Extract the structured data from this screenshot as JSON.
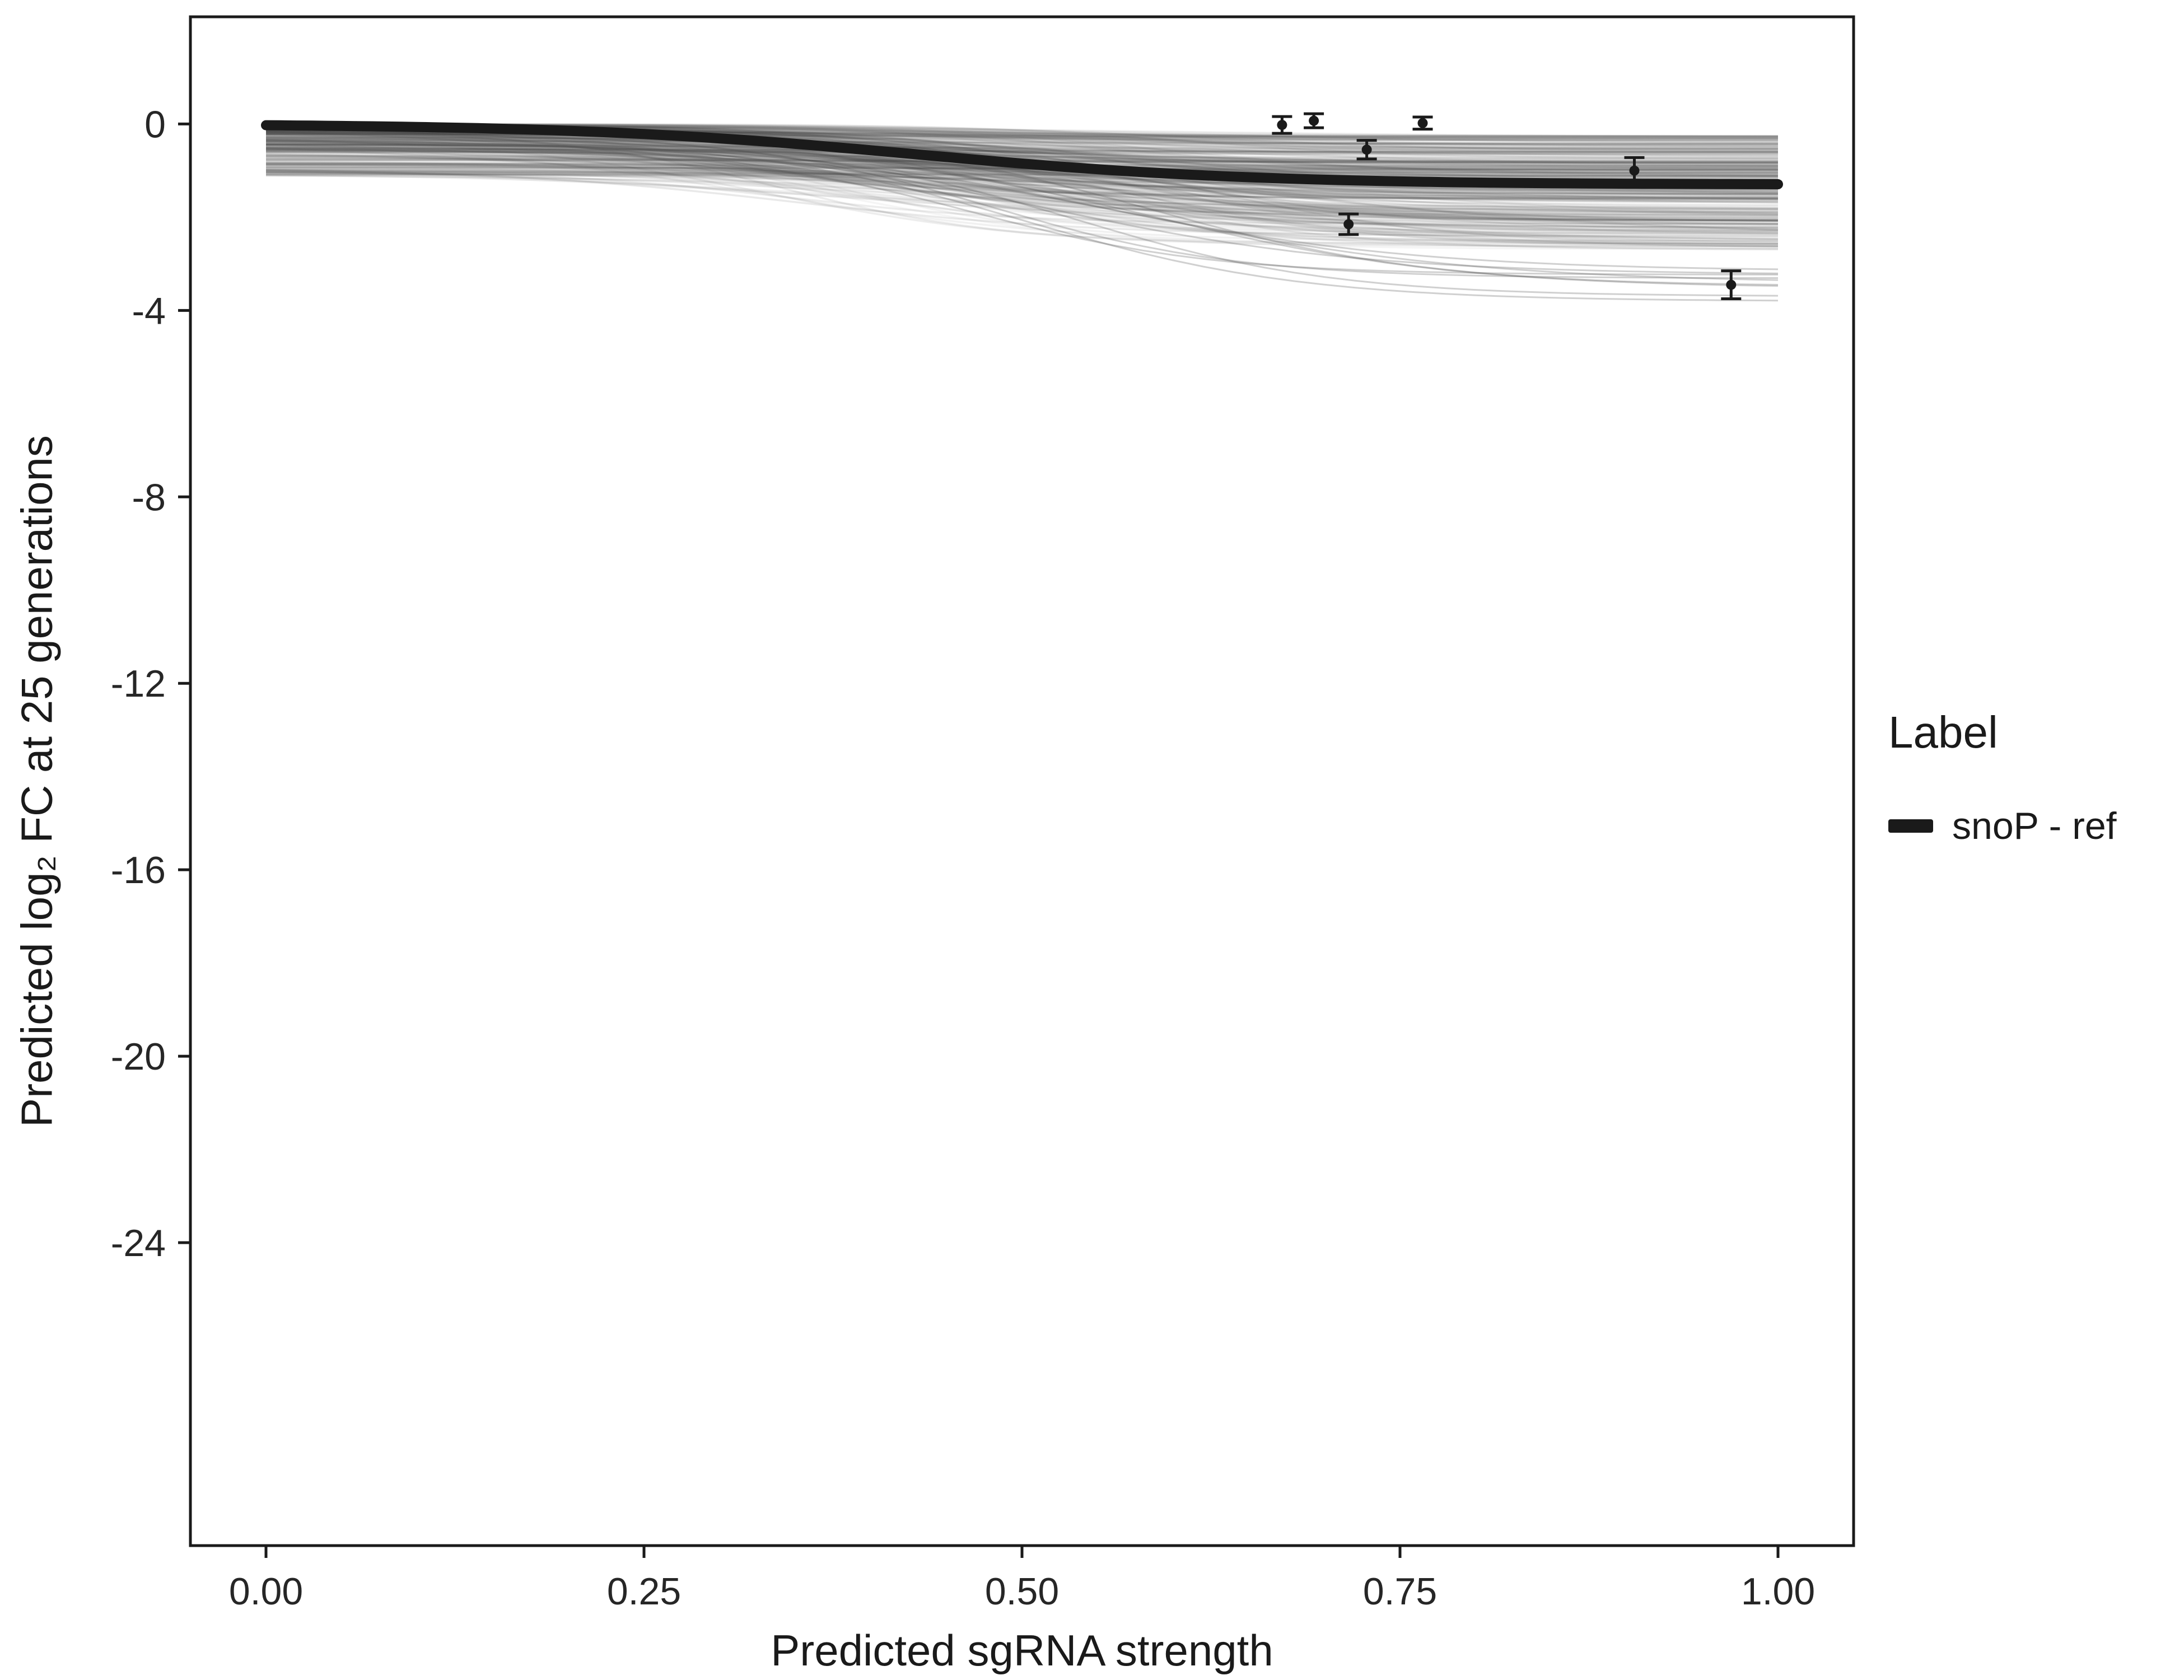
{
  "chart_data": {
    "type": "line",
    "title": "",
    "xlabel": "Predicted sgRNA strength",
    "ylabel": "Predicted  log₂ FC at 25 generations",
    "xlim": [
      -0.05,
      1.05
    ],
    "ylim": [
      -30.5,
      2.3
    ],
    "grid": false,
    "legend_position": "right",
    "x_ticks": {
      "values": [
        0,
        0.25,
        0.5,
        0.75,
        1.0
      ],
      "labels": [
        "0.00",
        "0.25",
        "0.50",
        "0.75",
        "1.00"
      ]
    },
    "y_ticks": {
      "values": [
        0,
        -4,
        -8,
        -12,
        -16,
        -20,
        -24
      ],
      "labels": [
        "0",
        "-4",
        "-8",
        "-12",
        "-16",
        "-20",
        "-24"
      ]
    },
    "legend": {
      "title": "Label",
      "entries": [
        {
          "label": "snoP - ref",
          "color": "#1a1a1a"
        }
      ]
    },
    "main_curve": {
      "name": "snoP - ref",
      "color": "#1a1a1a",
      "sigmoid": {
        "baseline": 0,
        "final": -1.3,
        "x0": 0.43,
        "k": 9
      },
      "points": [
        [
          0,
          -0.03
        ],
        [
          0.05,
          -0.04
        ],
        [
          0.1,
          -0.06
        ],
        [
          0.15,
          -0.1
        ],
        [
          0.2,
          -0.15
        ],
        [
          0.25,
          -0.22
        ],
        [
          0.3,
          -0.31
        ],
        [
          0.35,
          -0.43
        ],
        [
          0.4,
          -0.56
        ],
        [
          0.45,
          -0.71
        ],
        [
          0.5,
          -0.85
        ],
        [
          0.55,
          -0.97
        ],
        [
          0.6,
          -1.07
        ],
        [
          0.65,
          -1.14
        ],
        [
          0.7,
          -1.2
        ],
        [
          0.75,
          -1.23
        ],
        [
          0.8,
          -1.26
        ],
        [
          0.85,
          -1.27
        ],
        [
          0.9,
          -1.28
        ],
        [
          0.95,
          -1.29
        ],
        [
          1,
          -1.29
        ]
      ]
    },
    "observed_points": [
      {
        "x": 0.672,
        "y": -0.02,
        "err": 0.18
      },
      {
        "x": 0.693,
        "y": 0.07,
        "err": 0.15
      },
      {
        "x": 0.728,
        "y": -0.55,
        "err": 0.2
      },
      {
        "x": 0.765,
        "y": 0.02,
        "err": 0.13
      },
      {
        "x": 0.716,
        "y": -2.15,
        "err": 0.22
      },
      {
        "x": 0.905,
        "y": -1.0,
        "err": 0.28
      },
      {
        "x": 0.969,
        "y": -3.45,
        "err": 0.3
      }
    ],
    "ensemble": {
      "n_curves": 330,
      "n_outlier_curves": 9,
      "seed": 42,
      "color": "#3a3a3a",
      "outlier_color": "#555555",
      "baseline_range": [
        0,
        -1.1
      ],
      "final_range": [
        -0.25,
        -2.7
      ],
      "outlier_final_range": [
        -3.0,
        -3.85
      ],
      "x0_range": [
        0.32,
        0.62
      ],
      "k_range": [
        6,
        14
      ]
    }
  }
}
